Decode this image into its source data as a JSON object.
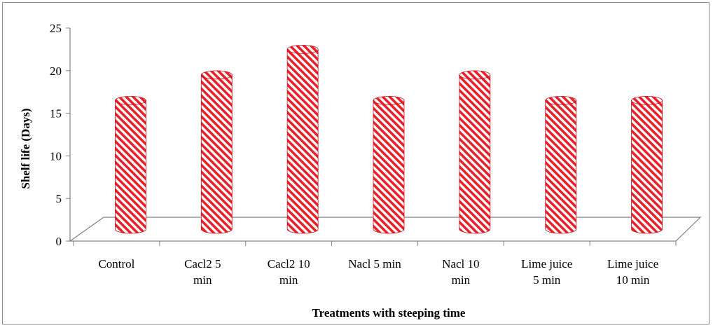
{
  "chart_data": {
    "type": "bar",
    "bar_style": "3d-cylinder",
    "categories": [
      [
        "Control"
      ],
      [
        "Cacl2 5",
        "min"
      ],
      [
        "Cacl2 10",
        "min"
      ],
      [
        "Nacl  5 min"
      ],
      [
        "Nacl 10",
        "min"
      ],
      [
        "Lime juice",
        "5 min"
      ],
      [
        "Lime juice",
        "10 min"
      ]
    ],
    "values": [
      16.5,
      19.5,
      22.5,
      16.5,
      19.5,
      16.5,
      16.5
    ],
    "xlabel": "Treatments with steeping time",
    "ylabel": "Shelf life  (Days)",
    "ylim": [
      0,
      25
    ],
    "yticks": [
      "0",
      "5",
      "10",
      "15",
      "20",
      "25"
    ],
    "grid": false,
    "colors": {
      "stripe": "#e8202a",
      "background": "#ffffff",
      "axis": "#808080"
    }
  }
}
